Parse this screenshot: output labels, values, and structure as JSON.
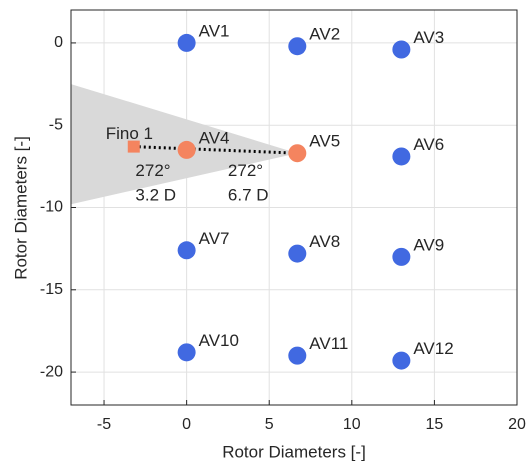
{
  "chart_data": {
    "type": "scatter",
    "xlabel": "Rotor Diameters [-]",
    "ylabel": "Rotor Diameters [-]",
    "xlim": [
      -7,
      20
    ],
    "ylim": [
      -22,
      2
    ],
    "xticks": [
      -5,
      0,
      5,
      10,
      15,
      20
    ],
    "yticks": [
      0,
      -5,
      -10,
      -15,
      -20
    ],
    "grid": true,
    "sector": {
      "color": "#d9d9d9",
      "apex": [
        6.7,
        -6.7
      ],
      "edge_x": -7,
      "edge_y": [
        -2.5,
        -9.8
      ]
    },
    "link": {
      "from": [
        -3.2,
        -6.3
      ],
      "to": [
        6.7,
        -6.7
      ],
      "color": "#000000"
    },
    "points": [
      {
        "label": "AV1",
        "x": 0,
        "y": 0,
        "color": "#4169e1"
      },
      {
        "label": "AV2",
        "x": 6.7,
        "y": -0.2,
        "color": "#4169e1"
      },
      {
        "label": "AV3",
        "x": 13,
        "y": -0.4,
        "color": "#4169e1"
      },
      {
        "label": "AV4",
        "x": 0,
        "y": -6.5,
        "color": "#f4845f"
      },
      {
        "label": "AV5",
        "x": 6.7,
        "y": -6.7,
        "color": "#f4845f"
      },
      {
        "label": "AV6",
        "x": 13,
        "y": -6.9,
        "color": "#4169e1"
      },
      {
        "label": "AV7",
        "x": 0,
        "y": -12.6,
        "color": "#4169e1"
      },
      {
        "label": "AV8",
        "x": 6.7,
        "y": -12.8,
        "color": "#4169e1"
      },
      {
        "label": "AV9",
        "x": 13,
        "y": -13,
        "color": "#4169e1"
      },
      {
        "label": "AV10",
        "x": 0,
        "y": -18.8,
        "color": "#4169e1"
      },
      {
        "label": "AV11",
        "x": 6.7,
        "y": -19,
        "color": "#4169e1"
      },
      {
        "label": "AV12",
        "x": 13,
        "y": -19.3,
        "color": "#4169e1"
      },
      {
        "label": "Fino 1",
        "x": -3.2,
        "y": -6.3,
        "color": "#f4845f",
        "marker": "square"
      }
    ],
    "annotations": [
      {
        "text": "272°",
        "x": -3.1,
        "y": -7.8
      },
      {
        "text": "3.2 D",
        "x": -3.1,
        "y": -9.3
      },
      {
        "text": "272°",
        "x": 2.5,
        "y": -7.8
      },
      {
        "text": "6.7 D",
        "x": 2.5,
        "y": -9.3
      }
    ]
  }
}
